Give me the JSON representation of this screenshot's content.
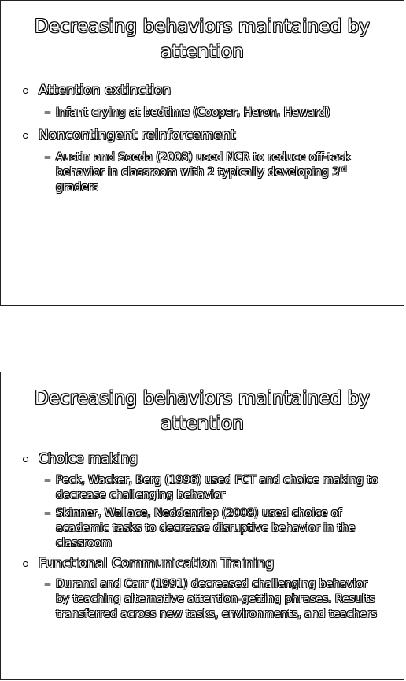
{
  "slides": [
    {
      "title": "Decreasing behaviors maintained by attention",
      "bullets": [
        {
          "text": "Attention extinction",
          "subs": [
            "Infant crying at bedtime (Cooper, Heron, Heward)"
          ]
        },
        {
          "text": "Noncontingent reinforcement",
          "subs_rich": {
            "part1": "Austin and Soeda (2008) used NCR to reduce off-task behavior in classroom with 2 typically developing 3",
            "sup": "rd",
            "part2": " graders"
          }
        }
      ]
    },
    {
      "title": "Decreasing behaviors maintained by attention",
      "bullets": [
        {
          "text": "Choice making",
          "subs": [
            "Peck, Wacker, Berg (1996) used FCT and choice making to decrease challenging behavior",
            "Skinner, Wallace, Neddenriep (2008) used choice of academic tasks to decrease disruptive behavior in the classroom"
          ]
        },
        {
          "text": "Functional Communication Training",
          "subs": [
            "Durand and Carr (1991) decreased challenging behavior by teaching alternative attention-getting phrases.  Results transferred across new tasks, environments, and teachers"
          ]
        }
      ]
    }
  ]
}
